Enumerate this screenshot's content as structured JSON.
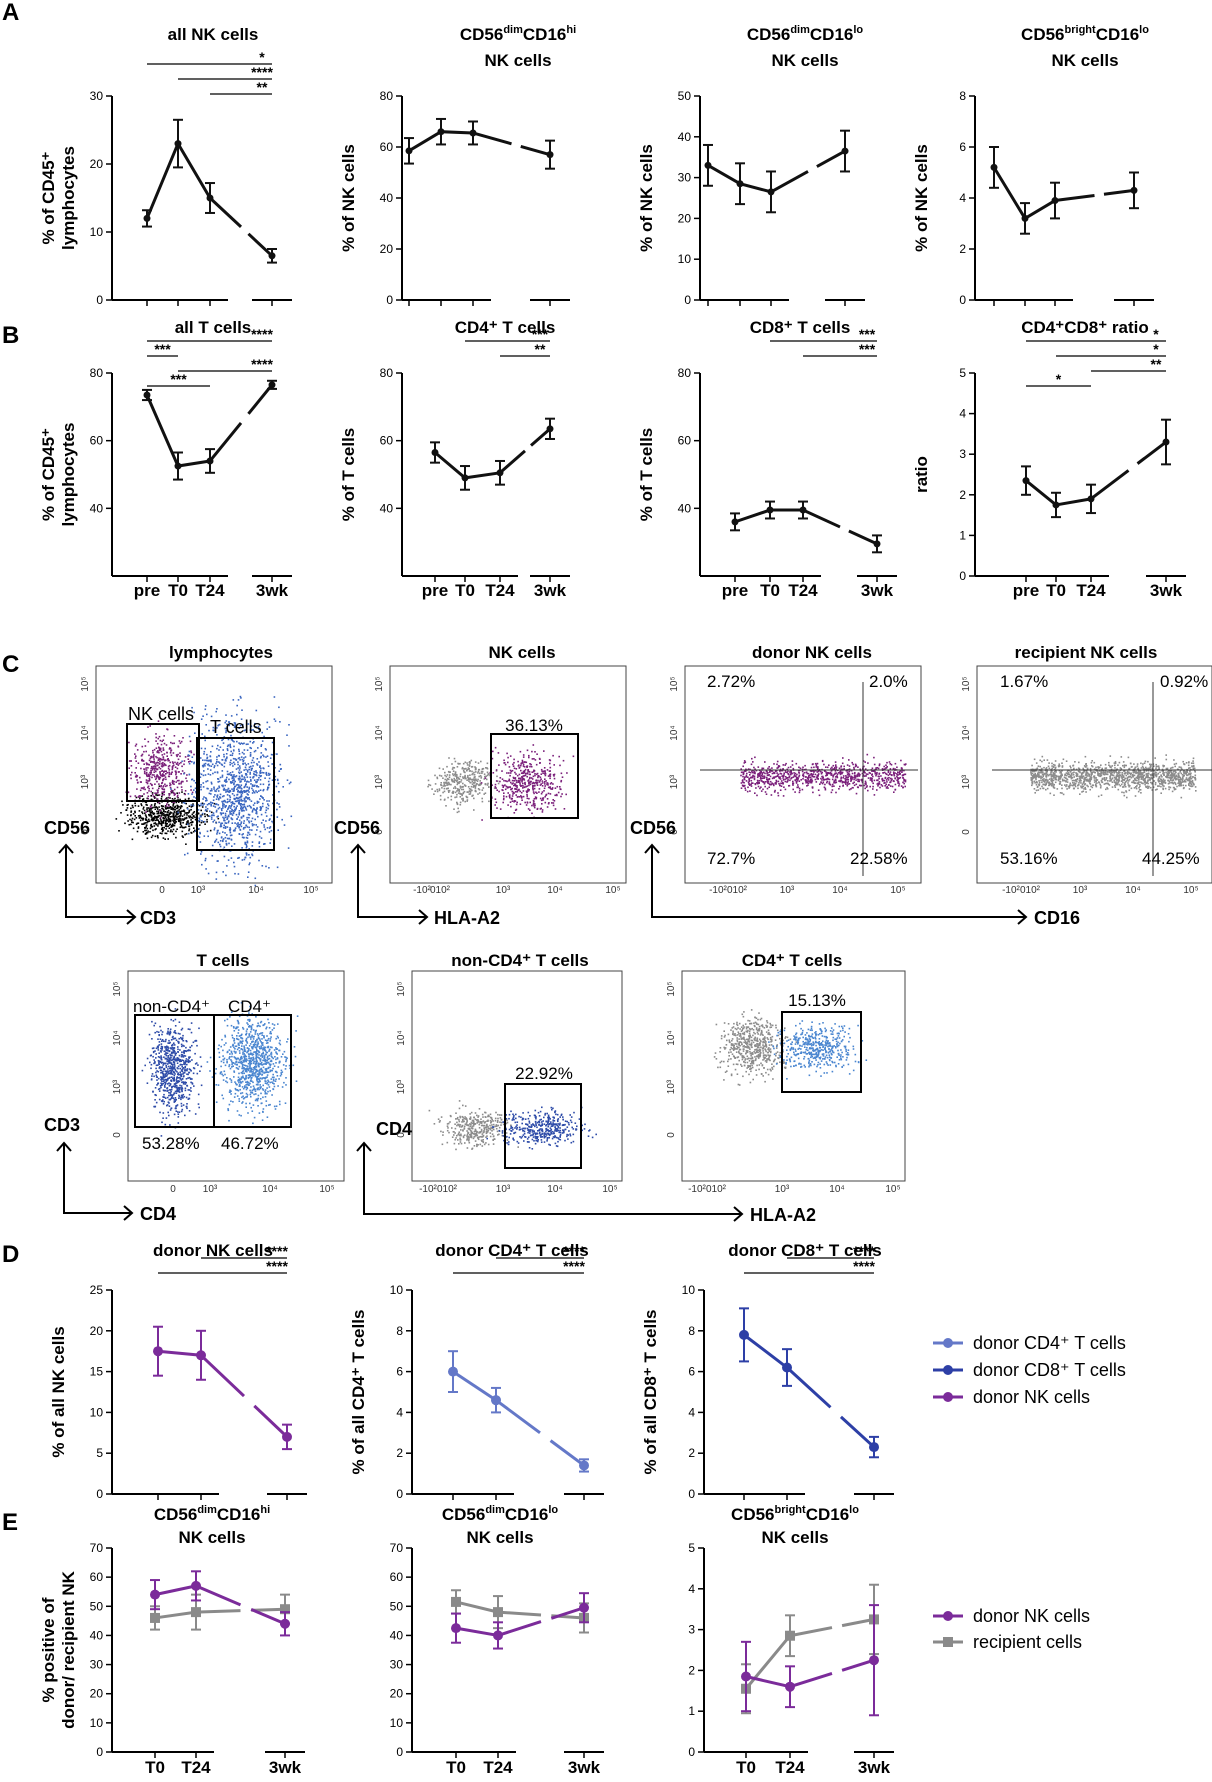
{
  "panel_labels": {
    "a": "A",
    "b": "B",
    "c": "C",
    "d": "D",
    "e": "E"
  },
  "colors": {
    "black": "#111111",
    "purple": "#7b2b9a",
    "cd4": "#6478c8",
    "cd8": "#2d3fa6",
    "gray": "#8a8a8a",
    "nk_dots": "#7a1f7a",
    "t_dots": "#3a66c0"
  },
  "tlabels": {
    "pre": "pre",
    "t0": "T0",
    "t24": "T24",
    "w3": "3wk"
  },
  "chart_data": [
    {
      "id": "a1",
      "type": "line",
      "title": "all NK cells",
      "ylabel": [
        "% of CD45⁺",
        "lymphocytes"
      ],
      "ylim": [
        0,
        30
      ],
      "yticks": [
        0,
        10,
        20,
        30
      ],
      "x": [
        "pre",
        "T0",
        "T24",
        "3wk"
      ],
      "values": [
        12,
        23,
        15,
        6.5
      ],
      "errors": [
        1.2,
        3.5,
        2.2,
        1
      ],
      "sig": [
        {
          "from": "pre",
          "to": "3wk",
          "label": "*"
        },
        {
          "from": "T0",
          "to": "3wk",
          "label": "****"
        },
        {
          "from": "T24",
          "to": "3wk",
          "label": "**"
        }
      ]
    },
    {
      "id": "a2",
      "type": "line",
      "title": "CD56dimCD16hi",
      "subtitle": "NK cells",
      "title_parts": {
        "base": "CD56",
        "sup1": "dim",
        "mid": "CD16",
        "sup2": "hi"
      },
      "ylabel": [
        "% of NK cells"
      ],
      "ylim": [
        0,
        80
      ],
      "yticks": [
        0,
        20,
        40,
        60,
        80
      ],
      "x": [
        "pre",
        "T0",
        "T24",
        "3wk"
      ],
      "values": [
        58.5,
        66,
        65.5,
        57
      ],
      "errors": [
        5,
        5,
        4.5,
        5.5
      ],
      "sig": []
    },
    {
      "id": "a3",
      "type": "line",
      "title": "CD56dimCD16lo",
      "subtitle": "NK cells",
      "title_parts": {
        "base": "CD56",
        "sup1": "dim",
        "mid": "CD16",
        "sup2": "lo"
      },
      "ylabel": [
        "% of NK cells"
      ],
      "ylim": [
        0,
        50
      ],
      "yticks": [
        0,
        10,
        20,
        30,
        40,
        50
      ],
      "x": [
        "pre",
        "T0",
        "T24",
        "3wk"
      ],
      "values": [
        33,
        28.5,
        26.5,
        36.5
      ],
      "errors": [
        5,
        5,
        5,
        5
      ],
      "sig": []
    },
    {
      "id": "a4",
      "type": "line",
      "title": "CD56brightCD16lo",
      "subtitle": "NK cells",
      "title_parts": {
        "base": "CD56",
        "sup1": "bright",
        "mid": "CD16",
        "sup2": "lo"
      },
      "ylabel": [
        "% of NK cells"
      ],
      "ylim": [
        0,
        8
      ],
      "yticks": [
        0,
        2,
        4,
        6,
        8
      ],
      "x": [
        "pre",
        "T0",
        "T24",
        "3wk"
      ],
      "values": [
        5.2,
        3.2,
        3.9,
        4.3
      ],
      "errors": [
        0.8,
        0.6,
        0.7,
        0.7
      ],
      "sig": []
    },
    {
      "id": "b1",
      "type": "line",
      "title": "all T cells",
      "ylabel": [
        "% of CD45⁺",
        "lymphocytes"
      ],
      "ylim": [
        20,
        80
      ],
      "yticks": [
        40,
        60,
        80
      ],
      "x": [
        "pre",
        "T0",
        "T24",
        "3wk"
      ],
      "values": [
        73.5,
        52.5,
        54,
        76.5
      ],
      "errors": [
        1.5,
        4,
        3.5,
        1.2
      ],
      "sig": [
        {
          "from": "pre",
          "to": "3wk",
          "label": "****"
        },
        {
          "from": "pre",
          "to": "T0",
          "label": "***"
        },
        {
          "from": "T0",
          "to": "3wk",
          "label": "****"
        },
        {
          "from": "pre",
          "to": "T24",
          "label": "***"
        }
      ]
    },
    {
      "id": "b2",
      "type": "line",
      "title": "CD4⁺ T cells",
      "ylabel": [
        "% of T cells"
      ],
      "ylim": [
        20,
        80
      ],
      "yticks": [
        40,
        60,
        80
      ],
      "x": [
        "pre",
        "T0",
        "T24",
        "3wk"
      ],
      "values": [
        56.5,
        49,
        50.5,
        63.5
      ],
      "errors": [
        3,
        3.5,
        3.5,
        3
      ],
      "sig": [
        {
          "from": "T0",
          "to": "3wk",
          "label": "***"
        },
        {
          "from": "T24",
          "to": "3wk",
          "label": "**"
        }
      ]
    },
    {
      "id": "b3",
      "type": "line",
      "title": "CD8⁺ T cells",
      "ylabel": [
        "% of T cells"
      ],
      "ylim": [
        20,
        80
      ],
      "yticks": [
        40,
        60,
        80
      ],
      "x": [
        "pre",
        "T0",
        "T24",
        "3wk"
      ],
      "values": [
        36,
        39.5,
        39.5,
        29.5
      ],
      "errors": [
        2.5,
        2.5,
        2.5,
        2.5
      ],
      "sig": [
        {
          "from": "T0",
          "to": "3wk",
          "label": "***"
        },
        {
          "from": "T24",
          "to": "3wk",
          "label": "***"
        }
      ]
    },
    {
      "id": "b4",
      "type": "line",
      "title": "CD4⁺CD8⁺ ratio",
      "ylabel": [
        "ratio"
      ],
      "ylim": [
        0,
        5
      ],
      "yticks": [
        0,
        1,
        2,
        3,
        4,
        5
      ],
      "x": [
        "pre",
        "T0",
        "T24",
        "3wk"
      ],
      "values": [
        2.35,
        1.75,
        1.9,
        3.3
      ],
      "errors": [
        0.35,
        0.3,
        0.35,
        0.55
      ],
      "sig": [
        {
          "from": "pre",
          "to": "3wk",
          "label": "*"
        },
        {
          "from": "T0",
          "to": "3wk",
          "label": "*"
        },
        {
          "from": "T24",
          "to": "3wk",
          "label": "**"
        },
        {
          "from": "pre",
          "to": "T24",
          "label": "*"
        }
      ]
    },
    {
      "id": "d1",
      "type": "line",
      "title": "donor NK cells",
      "ylabel": [
        "% of all NK cells"
      ],
      "ylim": [
        0,
        25
      ],
      "yticks": [
        0,
        5,
        10,
        15,
        20,
        25
      ],
      "x": [
        "T0",
        "T24",
        "3wk"
      ],
      "values": [
        17.5,
        17,
        7
      ],
      "errors": [
        3,
        3,
        1.5
      ],
      "color": "purple",
      "sig": [
        {
          "from": "T24",
          "to": "3wk",
          "label": "****"
        },
        {
          "from": "T0",
          "to": "3wk",
          "label": "****"
        }
      ]
    },
    {
      "id": "d2",
      "type": "line",
      "title": "donor CD4⁺ T cells",
      "ylabel": [
        "% of all CD4⁺ T cells"
      ],
      "ylim": [
        0,
        10
      ],
      "yticks": [
        0,
        2,
        4,
        6,
        8,
        10
      ],
      "x": [
        "T0",
        "T24",
        "3wk"
      ],
      "values": [
        6,
        4.6,
        1.4
      ],
      "errors": [
        1,
        0.6,
        0.3
      ],
      "color": "cd4",
      "sig": [
        {
          "from": "T24",
          "to": "3wk",
          "label": "****"
        },
        {
          "from": "T0",
          "to": "3wk",
          "label": "****"
        }
      ]
    },
    {
      "id": "d3",
      "type": "line",
      "title": "donor CD8⁺ T cells",
      "ylabel": [
        "% of all CD8⁺ T cells"
      ],
      "ylim": [
        0,
        10
      ],
      "yticks": [
        0,
        2,
        4,
        6,
        8,
        10
      ],
      "x": [
        "T0",
        "T24",
        "3wk"
      ],
      "values": [
        7.8,
        6.2,
        2.3
      ],
      "errors": [
        1.3,
        0.9,
        0.5
      ],
      "color": "cd8",
      "sig": [
        {
          "from": "T24",
          "to": "3wk",
          "label": "****"
        },
        {
          "from": "T0",
          "to": "3wk",
          "label": "****"
        }
      ]
    },
    {
      "id": "e1",
      "type": "line",
      "title": "CD56dimCD16hi",
      "subtitle": "NK cells",
      "title_parts": {
        "base": "CD56",
        "sup1": "dim",
        "mid": "CD16",
        "sup2": "hi"
      },
      "ylabel": [
        "% positive of",
        "donor/ recipient NK"
      ],
      "ylim": [
        0,
        70
      ],
      "yticks": [
        0,
        10,
        20,
        30,
        40,
        50,
        60,
        70
      ],
      "x": [
        "T0",
        "T24",
        "3wk"
      ],
      "series": [
        {
          "name": "recipient cells",
          "color": "gray",
          "values": [
            46,
            48,
            49
          ],
          "errors": [
            4,
            6,
            5
          ]
        },
        {
          "name": "donor NK cells",
          "color": "purple",
          "values": [
            54,
            57,
            44
          ],
          "errors": [
            5,
            5,
            4
          ]
        }
      ],
      "sig": []
    },
    {
      "id": "e2",
      "type": "line",
      "title": "CD56dimCD16lo",
      "subtitle": "NK cells",
      "title_parts": {
        "base": "CD56",
        "sup1": "dim",
        "mid": "CD16",
        "sup2": "lo"
      },
      "ylabel": [],
      "ylim": [
        0,
        70
      ],
      "yticks": [
        0,
        10,
        20,
        30,
        40,
        50,
        60,
        70
      ],
      "x": [
        "T0",
        "T24",
        "3wk"
      ],
      "series": [
        {
          "name": "recipient cells",
          "color": "gray",
          "values": [
            51.5,
            48,
            46
          ],
          "errors": [
            4,
            5.5,
            5
          ]
        },
        {
          "name": "donor NK cells",
          "color": "purple",
          "values": [
            42.5,
            40,
            49.5
          ],
          "errors": [
            5,
            4.5,
            5
          ]
        }
      ],
      "sig": []
    },
    {
      "id": "e3",
      "type": "line",
      "title": "CD56brightCD16lo",
      "subtitle": "NK cells",
      "title_parts": {
        "base": "CD56",
        "sup1": "bright",
        "mid": "CD16",
        "sup2": "lo"
      },
      "ylabel": [],
      "ylim": [
        0,
        5
      ],
      "yticks": [
        0,
        1,
        2,
        3,
        4,
        5
      ],
      "x": [
        "T0",
        "T24",
        "3wk"
      ],
      "series": [
        {
          "name": "recipient cells",
          "color": "gray",
          "values": [
            1.55,
            2.85,
            3.25
          ],
          "errors": [
            0.6,
            0.5,
            0.85
          ]
        },
        {
          "name": "donor NK cells",
          "color": "purple",
          "values": [
            1.85,
            1.6,
            2.25
          ],
          "errors": [
            0.85,
            0.5,
            1.35
          ]
        }
      ],
      "sig": []
    }
  ],
  "legend_d": [
    {
      "label": "donor CD4⁺ T cells",
      "color": "cd4"
    },
    {
      "label": "donor CD8⁺ T cells",
      "color": "cd8"
    },
    {
      "label": "donor NK cells",
      "color": "purple"
    }
  ],
  "legend_e": [
    {
      "label": "donor NK cells",
      "color": "purple"
    },
    {
      "label": "recipient cells",
      "color": "gray"
    }
  ],
  "flow": {
    "lymphocytes": {
      "title": "lymphocytes",
      "gate1": "NK cells",
      "gate2": "T cells"
    },
    "nk": {
      "title": "NK cells",
      "pct": "36.13%"
    },
    "donor_nk": {
      "title": "donor NK cells",
      "q": [
        "2.72%",
        "2.0%",
        "72.7%",
        "22.58%"
      ]
    },
    "recipient_nk": {
      "title": "recipient NK cells",
      "q": [
        "1.67%",
        "0.92%",
        "53.16%",
        "44.25%"
      ]
    },
    "t_cells": {
      "title": "T cells",
      "gate1": "non-CD4⁺",
      "gate2": "CD4⁺",
      "pct1": "53.28%",
      "pct2": "46.72%"
    },
    "non_cd4": {
      "title": "non-CD4⁺ T cells",
      "pct": "22.92%"
    },
    "cd4_t": {
      "title": "CD4⁺ T cells",
      "pct": "15.13%"
    },
    "axes": {
      "cd56": "CD56",
      "cd3": "CD3",
      "hla": "HLA-A2",
      "cd16": "CD16",
      "cd3y": "CD3",
      "cd4x": "CD4",
      "cd4y": "CD4"
    },
    "ticks": {
      "y": [
        "10⁵",
        "10⁴",
        "10³",
        "0"
      ],
      "x1": [
        "0",
        "10³",
        "10⁴",
        "10⁵"
      ],
      "x2": [
        "-10²",
        "010²",
        "10³",
        "10⁴",
        "10⁵"
      ]
    }
  }
}
